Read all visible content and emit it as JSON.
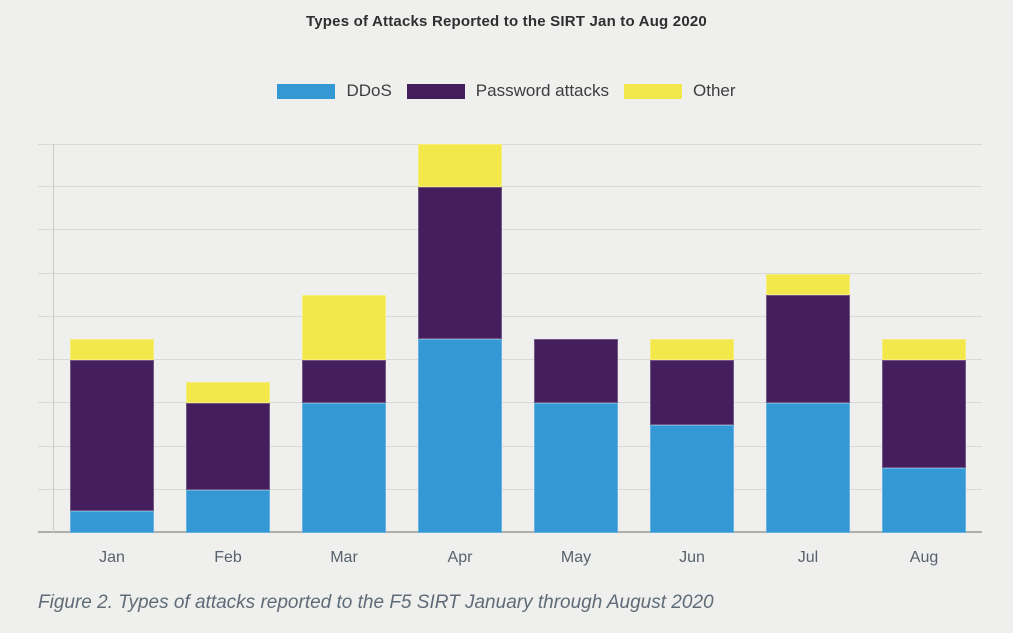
{
  "figure": {
    "caption": "Figure 2. Types of attacks reported to the F5 SIRT January through August 2020"
  },
  "chart_data": {
    "type": "bar",
    "stacked": true,
    "title": "Types of Attacks Reported to the SIRT Jan to Aug 2020",
    "categories": [
      "Jan",
      "Feb",
      "Mar",
      "Apr",
      "May",
      "Jun",
      "Jul",
      "Aug"
    ],
    "series": [
      {
        "name": "DDoS",
        "color": "#3498d4",
        "values": [
          0.5,
          1,
          3,
          4.5,
          3,
          2.5,
          3,
          1.5
        ]
      },
      {
        "name": "Password attacks",
        "color": "#451e5e",
        "values": [
          3.5,
          2,
          1,
          3.5,
          1.5,
          1.5,
          2.5,
          2.5
        ]
      },
      {
        "name": "Other",
        "color": "#f2e84b",
        "values": [
          0.5,
          0.5,
          1.5,
          1,
          0,
          0.5,
          0.5,
          0.5
        ]
      }
    ],
    "stack_totals": [
      4.5,
      3.5,
      5.5,
      9,
      4.5,
      4.5,
      6,
      4.5
    ],
    "xlabel": "",
    "ylabel": "",
    "ylim": [
      0,
      9
    ],
    "y_grid_step": 1,
    "y_tick_labels_visible": false,
    "grid": "horizontal",
    "legend_position": "top",
    "background_color": "#efefee"
  }
}
